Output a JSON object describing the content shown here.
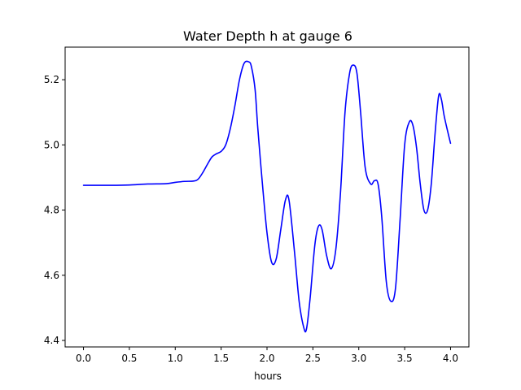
{
  "chart_data": {
    "type": "line",
    "title": "Water Depth h at gauge 6",
    "xlabel": "hours",
    "ylabel": "",
    "xlim": [
      -0.2,
      4.2
    ],
    "ylim": [
      4.38,
      5.3
    ],
    "xticks": [
      0.0,
      0.5,
      1.0,
      1.5,
      2.0,
      2.5,
      3.0,
      3.5,
      4.0
    ],
    "xtick_labels": [
      "0.0",
      "0.5",
      "1.0",
      "1.5",
      "2.0",
      "2.5",
      "3.0",
      "3.5",
      "4.0"
    ],
    "yticks": [
      4.4,
      4.6,
      4.8,
      5.0,
      5.2
    ],
    "ytick_labels": [
      "4.4",
      "4.6",
      "4.8",
      "5.0",
      "5.2"
    ],
    "grid": false,
    "series": [
      {
        "color": "#0000ff",
        "x": [
          0.0,
          0.3,
          0.5,
          0.7,
          0.9,
          1.0,
          1.1,
          1.2,
          1.25,
          1.3,
          1.35,
          1.4,
          1.45,
          1.5,
          1.55,
          1.6,
          1.65,
          1.7,
          1.75,
          1.8,
          1.83,
          1.87,
          1.9,
          1.95,
          2.0,
          2.05,
          2.1,
          2.15,
          2.2,
          2.24,
          2.3,
          2.35,
          2.4,
          2.43,
          2.47,
          2.52,
          2.56,
          2.6,
          2.65,
          2.7,
          2.75,
          2.8,
          2.85,
          2.9,
          2.94,
          2.98,
          3.02,
          3.07,
          3.13,
          3.17,
          3.21,
          3.25,
          3.3,
          3.35,
          3.4,
          3.45,
          3.5,
          3.55,
          3.59,
          3.63,
          3.67,
          3.71,
          3.75,
          3.79,
          3.83,
          3.87,
          3.9,
          3.93,
          3.97,
          4.0
        ],
        "y": [
          4.876,
          4.876,
          4.877,
          4.88,
          4.881,
          4.885,
          4.888,
          4.889,
          4.895,
          4.915,
          4.94,
          4.963,
          4.973,
          4.98,
          5.0,
          5.05,
          5.12,
          5.2,
          5.25,
          5.255,
          5.24,
          5.17,
          5.05,
          4.88,
          4.73,
          4.64,
          4.65,
          4.74,
          4.83,
          4.83,
          4.67,
          4.52,
          4.44,
          4.435,
          4.53,
          4.69,
          4.75,
          4.74,
          4.66,
          4.62,
          4.68,
          4.85,
          5.1,
          5.22,
          5.245,
          5.22,
          5.1,
          4.93,
          4.88,
          4.89,
          4.88,
          4.78,
          4.58,
          4.52,
          4.56,
          4.77,
          5.0,
          5.07,
          5.06,
          4.99,
          4.88,
          4.8,
          4.8,
          4.88,
          5.03,
          5.15,
          5.14,
          5.09,
          5.04,
          5.005
        ]
      }
    ]
  }
}
